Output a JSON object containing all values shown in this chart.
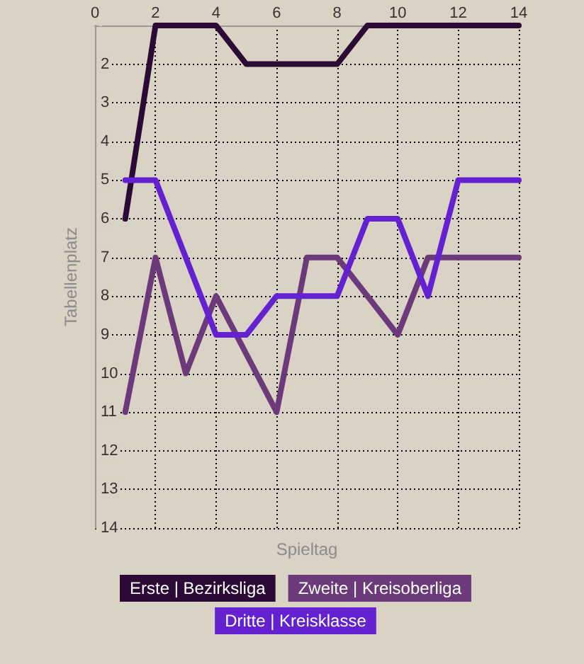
{
  "chart_data": {
    "type": "line",
    "xlabel": "Spieltag",
    "ylabel": "Tabellenplatz",
    "x": [
      1,
      2,
      3,
      4,
      5,
      6,
      7,
      8,
      9,
      10,
      11,
      12,
      13,
      14
    ],
    "xlim": [
      0,
      14
    ],
    "xticks": [
      0,
      2,
      4,
      6,
      8,
      10,
      12,
      14
    ],
    "ylim": [
      14,
      1
    ],
    "yticks": [
      2,
      3,
      4,
      5,
      6,
      7,
      8,
      9,
      10,
      11,
      12,
      13,
      14
    ],
    "grid": true,
    "legend": "bottom",
    "marker": "none",
    "line_style": "solid",
    "series": [
      {
        "name": "Erste | Bezirksliga",
        "color": "#2b0b35",
        "values": [
          6,
          1,
          1,
          1,
          2,
          2,
          2,
          2,
          1,
          1,
          1,
          1,
          1,
          1
        ]
      },
      {
        "name": "Zweite | Kreisoberliga",
        "color": "#6c3a7a",
        "x": [
          1,
          2,
          3,
          4,
          6,
          7,
          8,
          9,
          10,
          11,
          12,
          13,
          14
        ],
        "values": [
          11,
          7,
          10,
          8,
          11,
          7,
          7,
          8,
          9,
          7,
          7,
          7,
          7
        ]
      },
      {
        "name": "Dritte | Kreisklasse",
        "color": "#6321d2",
        "values": [
          5,
          5,
          7,
          9,
          9,
          8,
          8,
          8,
          6,
          6,
          8,
          5,
          5,
          5
        ]
      }
    ]
  }
}
